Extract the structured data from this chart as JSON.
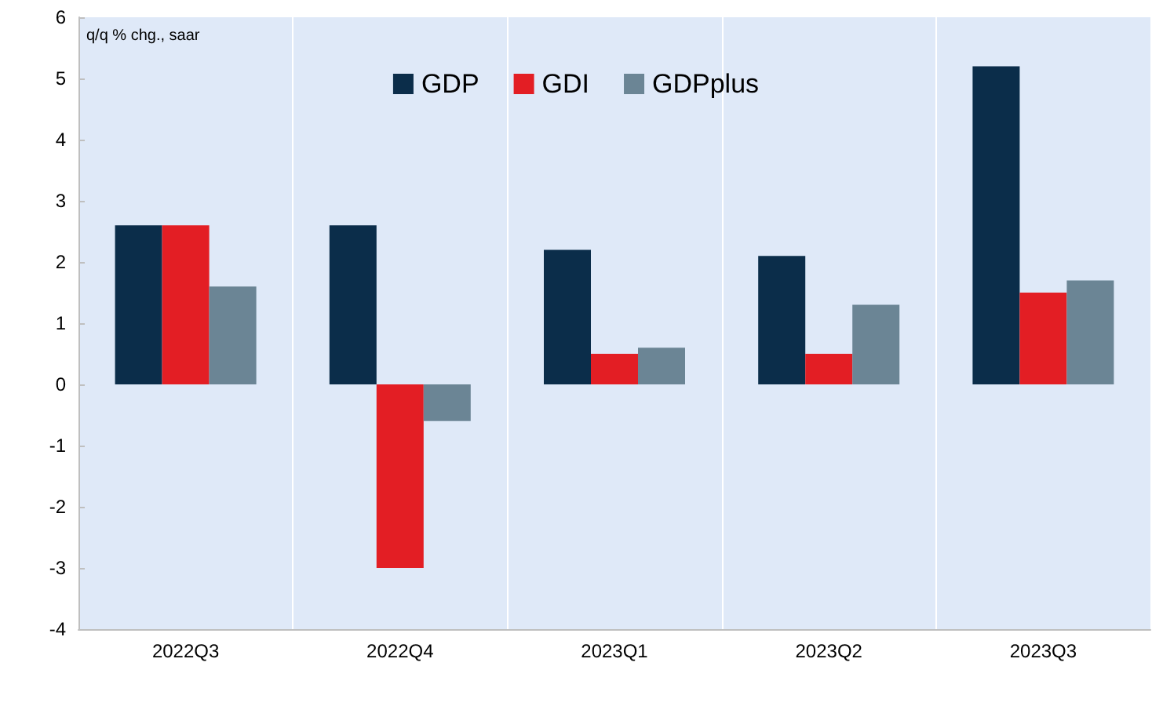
{
  "chart_data": {
    "type": "bar",
    "ylabel": "q/q % chg., saar",
    "categories": [
      "2022Q3",
      "2022Q4",
      "2023Q1",
      "2023Q2",
      "2023Q3"
    ],
    "series": [
      {
        "name": "GDP",
        "color": "#0b2d4a",
        "values": [
          2.6,
          2.6,
          2.2,
          2.1,
          5.2
        ]
      },
      {
        "name": "GDI",
        "color": "#e31e24",
        "values": [
          2.6,
          -3.0,
          0.5,
          0.5,
          1.5
        ]
      },
      {
        "name": "GDPplus",
        "color": "#6b8595",
        "values": [
          1.6,
          -0.6,
          0.6,
          1.3,
          1.7
        ]
      }
    ],
    "ylim": [
      -4,
      6
    ],
    "yticks": [
      -4,
      -3,
      -2,
      -1,
      0,
      1,
      2,
      3,
      4,
      5,
      6
    ],
    "grid": "x",
    "legend": "top"
  }
}
